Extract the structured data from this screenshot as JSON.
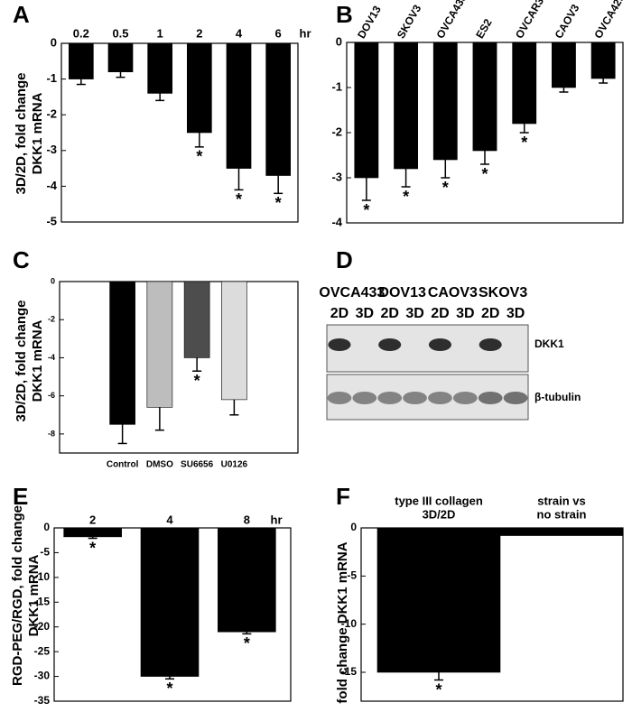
{
  "chart_data": [
    {
      "type": "bar",
      "panel": "A",
      "ylabel": [
        "3D/2D, fold change",
        "DKK1 mRNA"
      ],
      "xlabel": "hr",
      "categories": [
        "0.2",
        "0.5",
        "1",
        "2",
        "4",
        "6"
      ],
      "values": [
        -1.0,
        -0.8,
        -1.4,
        -2.5,
        -3.5,
        -3.7
      ],
      "errors": [
        0.15,
        0.15,
        0.2,
        0.4,
        0.6,
        0.5
      ],
      "significant": [
        false,
        false,
        false,
        true,
        true,
        true
      ],
      "marker": "*",
      "color": "#000000",
      "ylim": [
        -5,
        0
      ],
      "yticks": [
        0,
        -1,
        -2,
        -3,
        -4,
        -5
      ]
    },
    {
      "type": "bar",
      "panel": "B",
      "categories": [
        "DOV13",
        "SKOV3",
        "OVCA433",
        "ES2",
        "OVCAR3",
        "CAOV3",
        "OVCA429"
      ],
      "values": [
        -3.0,
        -2.8,
        -2.6,
        -2.4,
        -1.8,
        -1.0,
        -0.8
      ],
      "errors": [
        0.5,
        0.4,
        0.4,
        0.3,
        0.2,
        0.1,
        0.1
      ],
      "significant": [
        true,
        true,
        true,
        true,
        true,
        false,
        false
      ],
      "marker": "*",
      "color": "#000000",
      "ylim": [
        -4,
        0
      ],
      "yticks": [
        0,
        -1,
        -2,
        -3,
        -4
      ]
    },
    {
      "type": "bar",
      "panel": "C",
      "ylabel": [
        "3D/2D, fold change",
        "DKK1 mRNA"
      ],
      "categories": [
        "Control",
        "DMSO",
        "SU6656",
        "U0126"
      ],
      "values": [
        -7.5,
        -6.6,
        -4.0,
        -6.2
      ],
      "errors": [
        1.0,
        1.2,
        0.7,
        0.8
      ],
      "significant": [
        false,
        false,
        true,
        false
      ],
      "marker": "*",
      "colors": [
        "#000000",
        "#bdbdbd",
        "#4d4d4d",
        "#dcdcdc"
      ],
      "ylim": [
        -9,
        0
      ],
      "yticks": [
        0,
        -2,
        -4,
        -6,
        -8
      ]
    },
    {
      "type": "blot",
      "panel": "D",
      "lanes": [
        {
          "name": "OVCA433",
          "conditions": [
            "2D",
            "3D"
          ]
        },
        {
          "name": "DOV13",
          "conditions": [
            "2D",
            "3D"
          ]
        },
        {
          "name": "CAOV3",
          "conditions": [
            "2D",
            "3D"
          ]
        },
        {
          "name": "SKOV3",
          "conditions": [
            "2D",
            "3D"
          ]
        }
      ],
      "bands": [
        "DKK1",
        "β-tubulin"
      ]
    },
    {
      "type": "bar",
      "panel": "E",
      "ylabel": [
        "RGD-PEG/RGD, fold change",
        "DKK1 mRNA"
      ],
      "xlabel": "hr",
      "categories": [
        "2",
        "4",
        "8"
      ],
      "values": [
        -1.8,
        -30,
        -21
      ],
      "errors": [
        0.3,
        0.5,
        0.4
      ],
      "significant": [
        true,
        true,
        true
      ],
      "marker": "*",
      "color": "#000000",
      "ylim": [
        -35,
        0
      ],
      "yticks": [
        0,
        -5,
        -10,
        -15,
        -20,
        -25,
        -30,
        -35
      ]
    },
    {
      "type": "bar",
      "panel": "F",
      "ylabel": [
        "fold change DKK1 mRNA"
      ],
      "categories": [
        [
          "type III collagen",
          "3D/2D"
        ],
        [
          "strain vs",
          "no strain"
        ]
      ],
      "values": [
        -15,
        -0.8
      ],
      "errors": [
        0.8,
        0
      ],
      "significant": [
        true,
        false
      ],
      "marker": "*",
      "color": "#000000",
      "ylim": [
        -18,
        0
      ],
      "yticks": [
        0,
        -5,
        -10,
        -15
      ]
    }
  ]
}
